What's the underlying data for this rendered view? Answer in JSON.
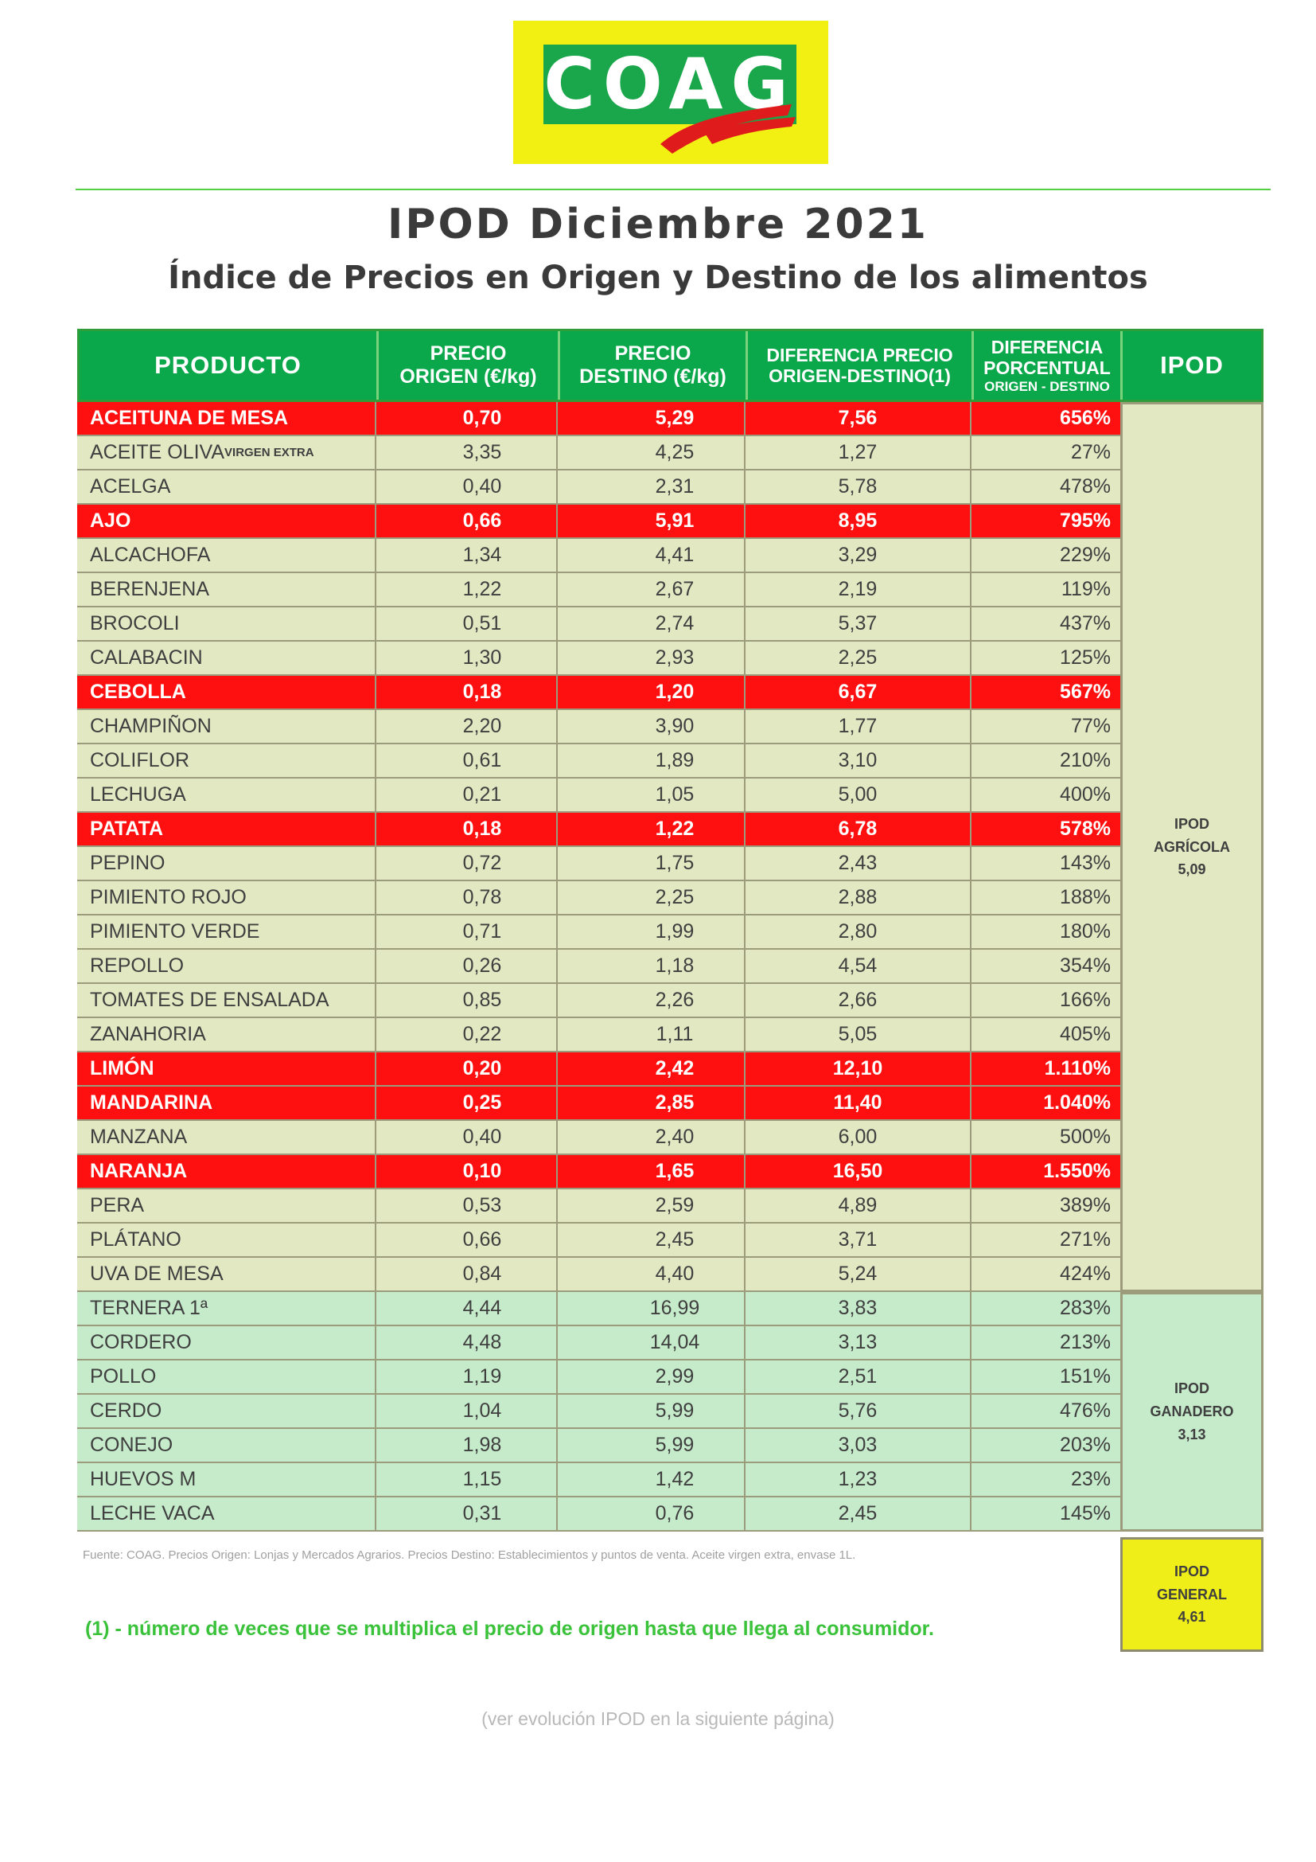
{
  "logo": {
    "text": "COAG",
    "colors": {
      "yellow": "#f2ef12",
      "green": "#1aa64a",
      "red": "#e01b1b"
    }
  },
  "title": "IPOD Diciembre 2021",
  "subtitle": "Índice de Precios en Origen y Destino de los alimentos",
  "table": {
    "headers": {
      "producto": "PRODUCTO",
      "origen_1": "PRECIO",
      "origen_2": "ORIGEN (€/kg)",
      "destino_1": "PRECIO",
      "destino_2": "DESTINO (€/kg)",
      "dif_1": "DIFERENCIA PRECIO",
      "dif_2": "ORIGEN-DESTINO(1)",
      "pct_1": "DIFERENCIA",
      "pct_2": "PORCENTUAL",
      "pct_3": "ORIGEN - DESTINO",
      "ipod": "IPOD"
    },
    "rows": [
      {
        "p": "ACEITUNA DE MESA",
        "o": "0,70",
        "d": "5,29",
        "x": "7,56",
        "pc": "656%",
        "hi": true,
        "g": "veg"
      },
      {
        "p": "ACEITE OLIVA",
        "sup": "VIRGEN EXTRA",
        "o": "3,35",
        "d": "4,25",
        "x": "1,27",
        "pc": "27%",
        "hi": false,
        "g": "veg"
      },
      {
        "p": "ACELGA",
        "o": "0,40",
        "d": "2,31",
        "x": "5,78",
        "pc": "478%",
        "hi": false,
        "g": "veg"
      },
      {
        "p": "AJO",
        "o": "0,66",
        "d": "5,91",
        "x": "8,95",
        "pc": "795%",
        "hi": true,
        "g": "veg"
      },
      {
        "p": "ALCACHOFA",
        "o": "1,34",
        "d": "4,41",
        "x": "3,29",
        "pc": "229%",
        "hi": false,
        "g": "veg"
      },
      {
        "p": "BERENJENA",
        "o": "1,22",
        "d": "2,67",
        "x": "2,19",
        "pc": "119%",
        "hi": false,
        "g": "veg"
      },
      {
        "p": "BROCOLI",
        "o": "0,51",
        "d": "2,74",
        "x": "5,37",
        "pc": "437%",
        "hi": false,
        "g": "veg"
      },
      {
        "p": "CALABACIN",
        "o": "1,30",
        "d": "2,93",
        "x": "2,25",
        "pc": "125%",
        "hi": false,
        "g": "veg"
      },
      {
        "p": "CEBOLLA",
        "o": "0,18",
        "d": "1,20",
        "x": "6,67",
        "pc": "567%",
        "hi": true,
        "g": "veg"
      },
      {
        "p": "CHAMPIÑON",
        "o": "2,20",
        "d": "3,90",
        "x": "1,77",
        "pc": "77%",
        "hi": false,
        "g": "veg"
      },
      {
        "p": "COLIFLOR",
        "o": "0,61",
        "d": "1,89",
        "x": "3,10",
        "pc": "210%",
        "hi": false,
        "g": "veg"
      },
      {
        "p": "LECHUGA",
        "o": "0,21",
        "d": "1,05",
        "x": "5,00",
        "pc": "400%",
        "hi": false,
        "g": "veg"
      },
      {
        "p": "PATATA",
        "o": "0,18",
        "d": "1,22",
        "x": "6,78",
        "pc": "578%",
        "hi": true,
        "g": "veg"
      },
      {
        "p": "PEPINO",
        "o": "0,72",
        "d": "1,75",
        "x": "2,43",
        "pc": "143%",
        "hi": false,
        "g": "veg"
      },
      {
        "p": "PIMIENTO ROJO",
        "o": "0,78",
        "d": "2,25",
        "x": "2,88",
        "pc": "188%",
        "hi": false,
        "g": "veg"
      },
      {
        "p": "PIMIENTO VERDE",
        "o": "0,71",
        "d": "1,99",
        "x": "2,80",
        "pc": "180%",
        "hi": false,
        "g": "veg"
      },
      {
        "p": "REPOLLO",
        "o": "0,26",
        "d": "1,18",
        "x": "4,54",
        "pc": "354%",
        "hi": false,
        "g": "veg"
      },
      {
        "p": "TOMATES DE ENSALADA",
        "o": "0,85",
        "d": "2,26",
        "x": "2,66",
        "pc": "166%",
        "hi": false,
        "g": "veg"
      },
      {
        "p": "ZANAHORIA",
        "o": "0,22",
        "d": "1,11",
        "x": "5,05",
        "pc": "405%",
        "hi": false,
        "g": "veg"
      },
      {
        "p": "LIMÓN",
        "o": "0,20",
        "d": "2,42",
        "x": "12,10",
        "pc": "1.110%",
        "hi": true,
        "g": "veg"
      },
      {
        "p": "MANDARINA",
        "o": "0,25",
        "d": "2,85",
        "x": "11,40",
        "pc": "1.040%",
        "hi": true,
        "g": "veg"
      },
      {
        "p": "MANZANA",
        "o": "0,40",
        "d": "2,40",
        "x": "6,00",
        "pc": "500%",
        "hi": false,
        "g": "veg"
      },
      {
        "p": "NARANJA",
        "o": "0,10",
        "d": "1,65",
        "x": "16,50",
        "pc": "1.550%",
        "hi": true,
        "g": "veg"
      },
      {
        "p": "PERA",
        "o": "0,53",
        "d": "2,59",
        "x": "4,89",
        "pc": "389%",
        "hi": false,
        "g": "veg"
      },
      {
        "p": "PLÁTANO",
        "o": "0,66",
        "d": "2,45",
        "x": "3,71",
        "pc": "271%",
        "hi": false,
        "g": "veg"
      },
      {
        "p": "UVA DE MESA",
        "o": "0,84",
        "d": "4,40",
        "x": "5,24",
        "pc": "424%",
        "hi": false,
        "g": "veg"
      },
      {
        "p": "TERNERA 1ª",
        "o": "4,44",
        "d": "16,99",
        "x": "3,83",
        "pc": "283%",
        "hi": false,
        "g": "meat"
      },
      {
        "p": "CORDERO",
        "o": "4,48",
        "d": "14,04",
        "x": "3,13",
        "pc": "213%",
        "hi": false,
        "g": "meat"
      },
      {
        "p": "POLLO",
        "o": "1,19",
        "d": "2,99",
        "x": "2,51",
        "pc": "151%",
        "hi": false,
        "g": "meat"
      },
      {
        "p": "CERDO",
        "o": "1,04",
        "d": "5,99",
        "x": "5,76",
        "pc": "476%",
        "hi": false,
        "g": "meat"
      },
      {
        "p": "CONEJO",
        "o": "1,98",
        "d": "5,99",
        "x": "3,03",
        "pc": "203%",
        "hi": false,
        "g": "meat"
      },
      {
        "p": "HUEVOS M",
        "o": "1,15",
        "d": "1,42",
        "x": "1,23",
        "pc": "23%",
        "hi": false,
        "g": "meat"
      },
      {
        "p": "LECHE VACA",
        "o": "0,31",
        "d": "0,76",
        "x": "2,45",
        "pc": "145%",
        "hi": false,
        "g": "meat"
      }
    ],
    "ipod_agricola": {
      "l1": "IPOD",
      "l2": "AGRÍCOLA",
      "l3": "5,09"
    },
    "ipod_ganadero": {
      "l1": "IPOD",
      "l2": "GANADERO",
      "l3": "3,13"
    },
    "ipod_general": {
      "l1": "IPOD",
      "l2": "GENERAL",
      "l3": "4,61"
    }
  },
  "source_note": "Fuente: COAG. Precios Origen: Lonjas y Mercados Agrarios. Precios Destino: Establecimientos y puntos de venta. Aceite virgen extra, envase 1L.",
  "footnote": "(1) - número de veces que se multiplica el precio de origen hasta que llega al consumidor.",
  "see_next": "(ver evolución IPOD en la siguiente página)"
}
